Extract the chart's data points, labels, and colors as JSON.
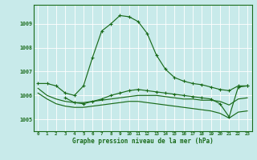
{
  "bg_color": "#c8eaea",
  "line_color": "#1a6b1a",
  "grid_color": "#ffffff",
  "xlabel": "Graphe pression niveau de la mer (hPa)",
  "xlim": [
    -0.5,
    23.5
  ],
  "ylim": [
    1004.5,
    1009.8
  ],
  "yticks": [
    1005,
    1006,
    1007,
    1008,
    1009
  ],
  "xticks": [
    0,
    1,
    2,
    3,
    4,
    5,
    6,
    7,
    8,
    9,
    10,
    11,
    12,
    13,
    14,
    15,
    16,
    17,
    18,
    19,
    20,
    21,
    22,
    23
  ],
  "line1_main": {
    "x": [
      0,
      1,
      2,
      3,
      4,
      5,
      6,
      7,
      8,
      9,
      10,
      11,
      12,
      13,
      14,
      15,
      16,
      17,
      18,
      19,
      20,
      21,
      22,
      23
    ],
    "y": [
      1006.5,
      1006.5,
      1006.4,
      1006.1,
      1006.0,
      1006.4,
      1007.6,
      1008.7,
      1009.0,
      1009.35,
      1009.3,
      1009.1,
      1008.6,
      1007.7,
      1007.1,
      1006.75,
      1006.6,
      1006.5,
      1006.45,
      1006.35,
      1006.25,
      1006.2,
      1006.4,
      1006.4
    ]
  },
  "line2_flat": {
    "x": [
      0,
      1,
      2,
      3,
      4,
      5,
      6,
      7,
      8,
      9,
      10,
      11,
      12,
      13,
      14,
      15,
      16,
      17,
      18,
      19,
      20,
      21,
      22,
      23
    ],
    "y": [
      1006.3,
      1006.0,
      1005.85,
      1005.75,
      1005.7,
      1005.7,
      1005.75,
      1005.8,
      1005.85,
      1005.9,
      1005.95,
      1006.0,
      1006.0,
      1006.0,
      1005.95,
      1005.9,
      1005.85,
      1005.85,
      1005.8,
      1005.8,
      1005.75,
      1005.6,
      1005.85,
      1005.9
    ]
  },
  "line3_flat": {
    "x": [
      0,
      1,
      2,
      3,
      4,
      5,
      6,
      7,
      8,
      9,
      10,
      11,
      12,
      13,
      14,
      15,
      16,
      17,
      18,
      19,
      20,
      21,
      22,
      23
    ],
    "y": [
      1006.1,
      1005.85,
      1005.65,
      1005.55,
      1005.5,
      1005.5,
      1005.55,
      1005.6,
      1005.65,
      1005.7,
      1005.75,
      1005.75,
      1005.7,
      1005.65,
      1005.6,
      1005.55,
      1005.5,
      1005.45,
      1005.4,
      1005.35,
      1005.25,
      1005.05,
      1005.3,
      1005.35
    ]
  },
  "line4_marker": {
    "x": [
      3,
      4,
      5,
      6,
      7,
      8,
      9,
      10,
      11,
      12,
      13,
      14,
      15,
      16,
      17,
      18,
      19,
      20,
      21,
      22,
      23
    ],
    "y": [
      1005.9,
      1005.7,
      1005.65,
      1005.75,
      1005.85,
      1006.0,
      1006.1,
      1006.2,
      1006.25,
      1006.2,
      1006.15,
      1006.1,
      1006.05,
      1006.0,
      1005.95,
      1005.9,
      1005.85,
      1005.65,
      1005.1,
      1006.35,
      1006.4
    ]
  }
}
